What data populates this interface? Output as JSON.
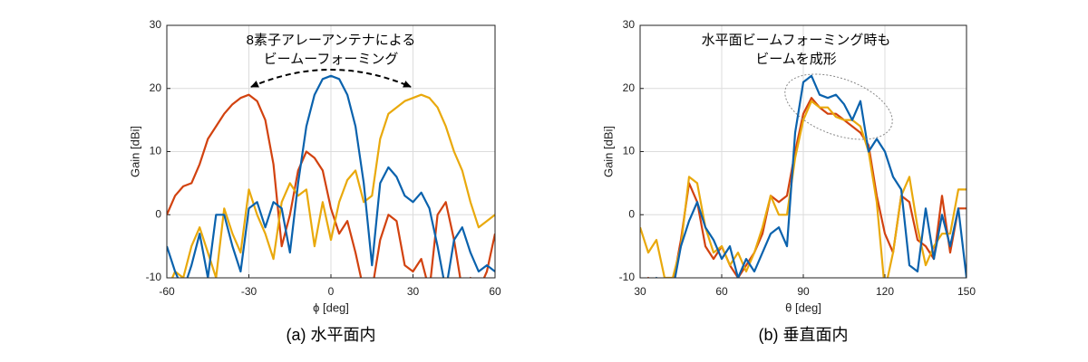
{
  "chart_data": [
    {
      "type": "line",
      "caption": "(a) 水平面内",
      "xlabel": "ϕ [deg]",
      "ylabel": "Gain [dBi]",
      "annotation": [
        "8素子アレーアンテナによる",
        "ビームーフォーミング"
      ],
      "xlim": [
        -60,
        60
      ],
      "xticks": [
        -60,
        -30,
        0,
        30,
        60
      ],
      "ylim": [
        -10,
        30
      ],
      "yticks": [
        -10,
        0,
        10,
        20,
        30
      ],
      "grid": true,
      "x": [
        -60,
        -57,
        -54,
        -51,
        -48,
        -45,
        -42,
        -39,
        -36,
        -33,
        -30,
        -27,
        -24,
        -21,
        -18,
        -15,
        -12,
        -9,
        -6,
        -3,
        0,
        3,
        6,
        9,
        12,
        15,
        18,
        21,
        24,
        27,
        30,
        33,
        36,
        39,
        42,
        45,
        48,
        51,
        54,
        57,
        60
      ],
      "series": [
        {
          "color": "#d2420f",
          "values": [
            0,
            3,
            4.5,
            5,
            8,
            12,
            14,
            16,
            17.5,
            18.5,
            19,
            18,
            15,
            8,
            -5,
            0,
            7,
            10,
            9,
            7,
            1,
            -3,
            -1,
            -6,
            -12,
            -12,
            -4,
            0,
            -1,
            -8,
            -9,
            -7,
            -12,
            0,
            2,
            -4,
            -12,
            -10,
            -12,
            -9,
            -3
          ]
        },
        {
          "color": "#e9a90c",
          "values": [
            -12,
            -9,
            -10,
            -5,
            -2,
            -6,
            -10,
            1,
            -3,
            -6,
            4,
            0,
            -3,
            -7,
            2,
            5,
            3,
            4,
            -5,
            2,
            -4,
            2,
            5.5,
            7,
            2,
            3,
            12,
            16,
            17,
            18,
            18.5,
            19,
            18.5,
            17,
            14,
            10,
            7,
            2,
            -2,
            -1,
            0
          ]
        },
        {
          "color": "#0a62ad",
          "values": [
            -5,
            -9,
            -12,
            -8,
            -3,
            -10,
            0,
            0,
            -5,
            -9,
            1,
            2,
            -2,
            2,
            1,
            -6,
            5,
            14,
            19,
            21.5,
            22,
            21.5,
            19,
            14,
            5,
            -8,
            5,
            7.5,
            6,
            3,
            2,
            3.5,
            1,
            -5,
            -12,
            -4,
            -2,
            -6,
            -9,
            -8,
            -9
          ]
        }
      ]
    },
    {
      "type": "line",
      "caption": "(b) 垂直面内",
      "xlabel": "θ [deg]",
      "ylabel": "Gain [dBi]",
      "annotation": [
        "水平面ビームフォーミング時も",
        "ビームを成形"
      ],
      "xlim": [
        30,
        150
      ],
      "xticks": [
        30,
        60,
        90,
        120,
        150
      ],
      "ylim": [
        -10,
        30
      ],
      "yticks": [
        -10,
        0,
        10,
        20,
        30
      ],
      "grid": true,
      "x": [
        30,
        33,
        36,
        39,
        42,
        45,
        48,
        51,
        54,
        57,
        60,
        63,
        66,
        69,
        72,
        75,
        78,
        81,
        84,
        87,
        90,
        93,
        96,
        99,
        102,
        105,
        108,
        111,
        114,
        117,
        120,
        123,
        126,
        129,
        132,
        135,
        138,
        141,
        144,
        147,
        150
      ],
      "series": [
        {
          "color": "#d2420f",
          "values": [
            -12,
            -10,
            -12,
            -10,
            -11,
            -4,
            5,
            2,
            -5,
            -7,
            -5,
            -8,
            -10,
            -8,
            -6,
            -3,
            3,
            2,
            3,
            10,
            16,
            18.5,
            17,
            16,
            16,
            15,
            14,
            13,
            11,
            3,
            -3,
            -6,
            3,
            2,
            -4,
            -5,
            -7,
            3,
            -6,
            1,
            1
          ]
        },
        {
          "color": "#e9a90c",
          "values": [
            -2,
            -6,
            -4,
            -10,
            -10,
            -5,
            6,
            5,
            -2,
            -6,
            -5,
            -8,
            -6,
            -9,
            -6,
            -2,
            3,
            0,
            0,
            9,
            15,
            18,
            17,
            17,
            15.5,
            15,
            15,
            14,
            10,
            2,
            -12,
            -6,
            3,
            6,
            -2,
            -8,
            -5,
            -3,
            -3,
            4,
            4
          ]
        },
        {
          "color": "#0a62ad",
          "values": [
            -12,
            -12,
            -10,
            -12,
            -12,
            -5,
            -1,
            2,
            -2,
            -4,
            -7,
            -5,
            -10,
            -7,
            -9,
            -6,
            -3,
            -2,
            -5,
            13,
            21,
            22,
            19,
            18.5,
            19,
            17.5,
            15,
            18,
            10,
            12,
            10,
            6,
            4,
            -8,
            -9,
            1,
            -7,
            0,
            -5,
            1,
            -10
          ]
        }
      ]
    }
  ]
}
